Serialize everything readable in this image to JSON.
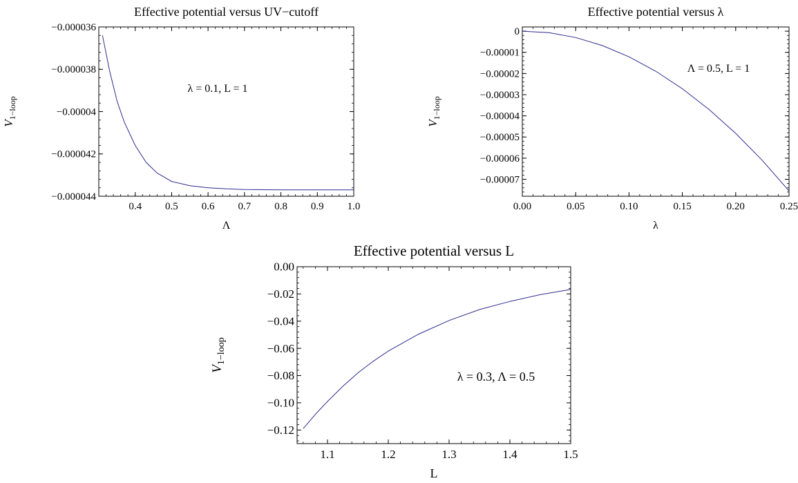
{
  "figure": {
    "accent_line_color": "#2b2b8f",
    "axis_color": "#000000"
  },
  "chart_data": [
    {
      "id": "uv",
      "type": "line",
      "title": "Effective potential versus UV−cutoff",
      "xlabel": "Λ",
      "ylabel_main": "V",
      "ylabel_sub": "1−loop",
      "annotation": "λ = 0.1,  L = 1",
      "xlim": [
        0.3,
        1.0
      ],
      "ylim": [
        -4.4e-05,
        -3.6e-05
      ],
      "xticks": [
        0.4,
        0.5,
        0.6,
        0.7,
        0.8,
        0.9,
        1.0
      ],
      "xtick_labels": [
        "0.4",
        "0.5",
        "0.6",
        "0.7",
        "0.8",
        "0.9",
        "1.0"
      ],
      "yticks": [
        -3.6e-05,
        -3.8e-05,
        -4e-05,
        -4.2e-05,
        -4.4e-05
      ],
      "ytick_labels": [
        "−0.000036",
        "−0.000038",
        "−0.00004",
        "−0.000042",
        "−0.000044"
      ],
      "series": [
        {
          "x": [
            0.31,
            0.33,
            0.35,
            0.37,
            0.4,
            0.43,
            0.46,
            0.5,
            0.55,
            0.6,
            0.65,
            0.7,
            0.8,
            0.9,
            1.0
          ],
          "y": [
            -3.64e-05,
            -3.81e-05,
            -3.95e-05,
            -4.05e-05,
            -4.16e-05,
            -4.24e-05,
            -4.29e-05,
            -4.33e-05,
            -4.35e-05,
            -4.36e-05,
            -4.365e-05,
            -4.368e-05,
            -4.37e-05,
            -4.37e-05,
            -4.37e-05
          ]
        }
      ]
    },
    {
      "id": "lambda",
      "type": "line",
      "title": "Effective potential versus λ",
      "xlabel": "λ",
      "ylabel_main": "V",
      "ylabel_sub": "1−loop",
      "annotation": "Λ = 0.5,  L = 1",
      "xlim": [
        0.0,
        0.25
      ],
      "ylim": [
        -7.8e-05,
        2e-06
      ],
      "xticks": [
        0.0,
        0.05,
        0.1,
        0.15,
        0.2,
        0.25
      ],
      "xtick_labels": [
        "0.00",
        "0.05",
        "0.10",
        "0.15",
        "0.20",
        "0.25"
      ],
      "yticks": [
        0,
        -1e-05,
        -2e-05,
        -3e-05,
        -4e-05,
        -5e-05,
        -6e-05,
        -7e-05
      ],
      "ytick_labels": [
        "0",
        "−0.00001",
        "−0.00002",
        "−0.00003",
        "−0.00004",
        "−0.00005",
        "−0.00006",
        "−0.00007"
      ],
      "series": [
        {
          "x": [
            0.0,
            0.025,
            0.05,
            0.075,
            0.1,
            0.125,
            0.15,
            0.175,
            0.2,
            0.225,
            0.25
          ],
          "y": [
            0,
            -7e-07,
            -3e-06,
            -6.8e-06,
            -1.21e-05,
            -1.89e-05,
            -2.72e-05,
            -3.7e-05,
            -4.83e-05,
            -6.11e-05,
            -7.55e-05
          ]
        }
      ]
    },
    {
      "id": "L",
      "type": "line",
      "title": "Effective potential versus L",
      "xlabel": "L",
      "ylabel_main": "V",
      "ylabel_sub": "1−loop",
      "annotation": "λ = 0.3,  Λ = 0.5",
      "xlim": [
        1.05,
        1.5
      ],
      "ylim": [
        -0.13,
        0.0
      ],
      "xticks": [
        1.1,
        1.2,
        1.3,
        1.4,
        1.5
      ],
      "xtick_labels": [
        "1.1",
        "1.2",
        "1.3",
        "1.4",
        "1.5"
      ],
      "yticks": [
        0.0,
        -0.02,
        -0.04,
        -0.06,
        -0.08,
        -0.1,
        -0.12
      ],
      "ytick_labels": [
        "0.00",
        "−0.02",
        "−0.04",
        "−0.06",
        "−0.08",
        "−0.10",
        "−0.12"
      ],
      "series": [
        {
          "x": [
            1.06,
            1.08,
            1.1,
            1.125,
            1.15,
            1.175,
            1.2,
            1.25,
            1.3,
            1.35,
            1.4,
            1.45,
            1.5
          ],
          "y": [
            -0.119,
            -0.1085,
            -0.099,
            -0.088,
            -0.078,
            -0.0695,
            -0.062,
            -0.0495,
            -0.0395,
            -0.0315,
            -0.0255,
            -0.0205,
            -0.0167
          ]
        }
      ]
    }
  ]
}
